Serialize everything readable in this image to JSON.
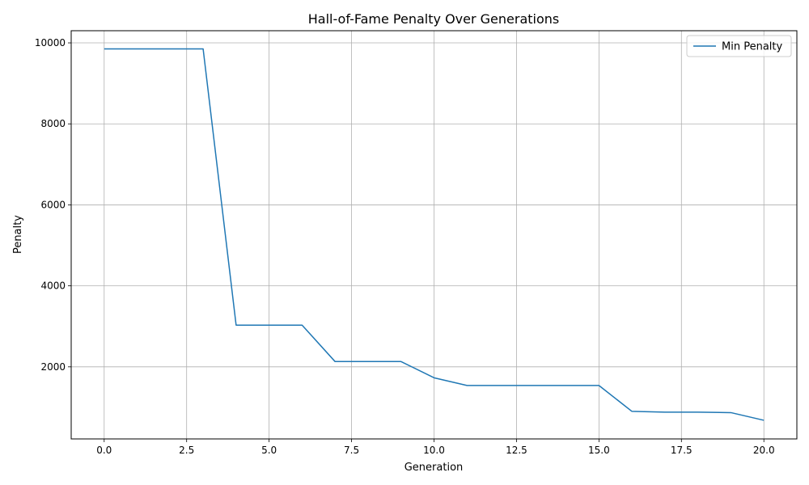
{
  "chart_data": {
    "type": "line",
    "title": "Hall-of-Fame Penalty Over Generations",
    "xlabel": "Generation",
    "ylabel": "Penalty",
    "xlim": [
      -1.0,
      21.0
    ],
    "ylim": [
      220,
      10300
    ],
    "xticks": [
      0.0,
      2.5,
      5.0,
      7.5,
      10.0,
      12.5,
      15.0,
      17.5,
      20.0
    ],
    "xtick_labels": [
      "0.0",
      "2.5",
      "5.0",
      "7.5",
      "10.0",
      "12.5",
      "15.0",
      "17.5",
      "20.0"
    ],
    "yticks": [
      2000,
      4000,
      6000,
      8000,
      10000
    ],
    "ytick_labels": [
      "2000",
      "4000",
      "6000",
      "8000",
      "10000"
    ],
    "grid": true,
    "legend_position": "top-right",
    "series": [
      {
        "name": "Min Penalty",
        "color": "#1f77b4",
        "x": [
          0,
          1,
          2,
          3,
          4,
          5,
          6,
          7,
          8,
          9,
          10,
          11,
          12,
          13,
          14,
          15,
          16,
          17,
          18,
          19,
          20
        ],
        "y": [
          9850,
          9850,
          9850,
          9850,
          3030,
          3030,
          3030,
          2130,
          2130,
          2130,
          1730,
          1540,
          1540,
          1540,
          1540,
          1540,
          900,
          880,
          880,
          870,
          680
        ]
      }
    ]
  }
}
